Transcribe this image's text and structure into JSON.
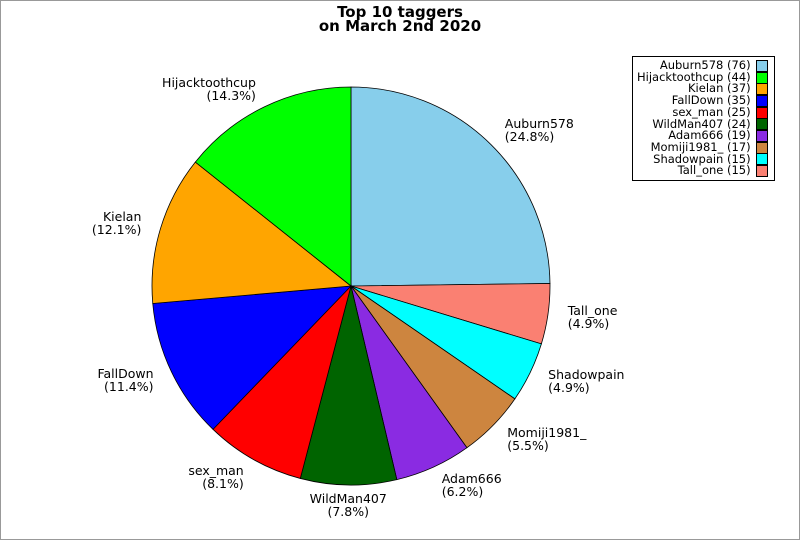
{
  "figure": {
    "background": "#ffffff",
    "border_color": "#999999"
  },
  "title": {
    "line1": "Top 10 taggers",
    "line2": "on March 2nd 2020"
  },
  "chart_data": {
    "type": "pie",
    "title": "Top 10 taggers on March 2nd 2020",
    "start_angle": "12-oclock",
    "direction": "clockwise",
    "slices": [
      {
        "name": "Auburn578",
        "count": 76,
        "pct": 24.8,
        "pct_label": "24.8%",
        "color": "#87CEEB"
      },
      {
        "name": "Tall_one",
        "count": 15,
        "pct": 4.9,
        "pct_label": "4.9%",
        "color": "#FA8072"
      },
      {
        "name": "Shadowpain",
        "count": 15,
        "pct": 4.9,
        "pct_label": "4.9%",
        "color": "#00FFFF"
      },
      {
        "name": "Momiji1981_",
        "count": 17,
        "pct": 5.5,
        "pct_label": "5.5%",
        "color": "#CD853F"
      },
      {
        "name": "Adam666",
        "count": 19,
        "pct": 6.2,
        "pct_label": "6.2%",
        "color": "#8A2BE2"
      },
      {
        "name": "WildMan407",
        "count": 24,
        "pct": 7.8,
        "pct_label": "7.8%",
        "color": "#006400"
      },
      {
        "name": "sex_man",
        "count": 25,
        "pct": 8.1,
        "pct_label": "8.1%",
        "color": "#FF0000"
      },
      {
        "name": "FallDown",
        "count": 35,
        "pct": 11.4,
        "pct_label": "11.4%",
        "color": "#0000FF"
      },
      {
        "name": "Kielan",
        "count": 37,
        "pct": 12.1,
        "pct_label": "12.1%",
        "color": "#FFA500"
      },
      {
        "name": "Hijacktoothcup",
        "count": 44,
        "pct": 14.3,
        "pct_label": "14.3%",
        "color": "#00FF00"
      }
    ],
    "legend_order": [
      0,
      9,
      8,
      7,
      6,
      5,
      4,
      3,
      2,
      1
    ],
    "legend_position": "upper right",
    "wedge_edge_color": "#000000"
  }
}
